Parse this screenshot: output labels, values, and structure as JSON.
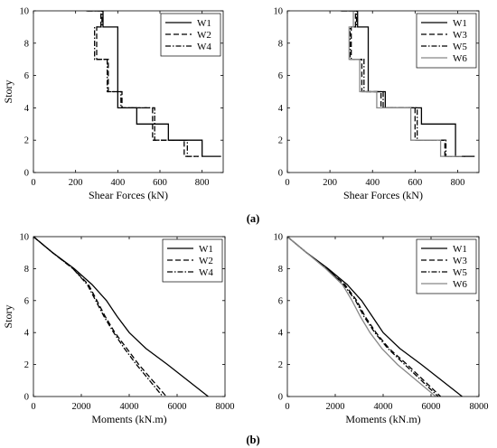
{
  "figure": {
    "caption_a": "(a)",
    "caption_b": "(b)"
  },
  "chart_data": [
    {
      "type": "line",
      "id": "shear_a",
      "xlabel": "Shear Forces (kN)",
      "ylabel": "Story",
      "xlim": [
        0,
        900
      ],
      "ylim": [
        0,
        10
      ],
      "xticks": [
        0,
        200,
        400,
        600,
        800
      ],
      "yticks": [
        0,
        2,
        4,
        6,
        8,
        10
      ],
      "legend": "top-right",
      "grid": false,
      "series": [
        {
          "name": "W1",
          "style": "solid",
          "color": "#000000",
          "x": [
            250,
            330,
            330,
            400,
            400,
            490,
            490,
            640,
            640,
            800,
            800,
            890
          ],
          "y": [
            10,
            10,
            9,
            9,
            4,
            4,
            3,
            3,
            2,
            2,
            1,
            1
          ]
        },
        {
          "name": "W2",
          "style": "dashed",
          "color": "#000000",
          "x": [
            255,
            320,
            320,
            300,
            300,
            355,
            355,
            420,
            420,
            565,
            565,
            715,
            715,
            785
          ],
          "y": [
            10,
            10,
            9,
            9,
            7,
            7,
            5,
            5,
            4,
            4,
            2,
            2,
            1,
            1
          ]
        },
        {
          "name": "W4",
          "style": "dashdot",
          "color": "#000000",
          "x": [
            255,
            325,
            325,
            290,
            290,
            350,
            350,
            415,
            415,
            575,
            575,
            730,
            730,
            780
          ],
          "y": [
            10,
            10,
            9,
            9,
            7,
            7,
            5,
            5,
            4,
            4,
            2,
            2,
            1,
            1
          ]
        }
      ]
    },
    {
      "type": "line",
      "id": "shear_b",
      "xlabel": "Shear Forces (kN)",
      "ylabel": "",
      "xlim": [
        0,
        900
      ],
      "ylim": [
        0,
        10
      ],
      "xticks": [
        0,
        200,
        400,
        600,
        800
      ],
      "yticks": [
        0,
        2,
        4,
        6,
        8,
        10
      ],
      "legend": "top-right",
      "grid": false,
      "series": [
        {
          "name": "W1",
          "style": "solid",
          "color": "#000000",
          "x": [
            250,
            330,
            330,
            380,
            380,
            460,
            460,
            630,
            630,
            790,
            790,
            880
          ],
          "y": [
            10,
            10,
            9,
            9,
            5,
            5,
            4,
            4,
            3,
            3,
            1,
            1
          ]
        },
        {
          "name": "W3",
          "style": "dashed",
          "color": "#000000",
          "x": [
            255,
            320,
            320,
            300,
            300,
            350,
            350,
            440,
            440,
            600,
            600,
            740,
            740,
            830
          ],
          "y": [
            10,
            10,
            9,
            9,
            7,
            7,
            5,
            5,
            4,
            4,
            2,
            2,
            1,
            1
          ]
        },
        {
          "name": "W5",
          "style": "dashdot",
          "color": "#000000",
          "x": [
            255,
            325,
            325,
            295,
            295,
            360,
            360,
            450,
            450,
            610,
            610,
            745,
            745,
            835
          ],
          "y": [
            10,
            10,
            9,
            9,
            7,
            7,
            5,
            5,
            4,
            4,
            2,
            2,
            1,
            1
          ]
        },
        {
          "name": "W6",
          "style": "solid",
          "color": "#888888",
          "x": [
            250,
            310,
            310,
            290,
            290,
            340,
            340,
            420,
            420,
            580,
            580,
            720,
            720,
            820
          ],
          "y": [
            10,
            10,
            9,
            9,
            7,
            7,
            5,
            5,
            4,
            4,
            2,
            2,
            1,
            1
          ]
        }
      ]
    },
    {
      "type": "line",
      "id": "moment_a",
      "xlabel": "Moments (kN.m)",
      "ylabel": "Story",
      "xlim": [
        0,
        8000
      ],
      "ylim": [
        0,
        10
      ],
      "xticks": [
        0,
        2000,
        4000,
        6000,
        8000
      ],
      "yticks": [
        0,
        2,
        4,
        6,
        8,
        10
      ],
      "legend": "top-right",
      "grid": false,
      "series": [
        {
          "name": "W1",
          "style": "solid",
          "color": "#000000",
          "x": [
            0,
            800,
            1700,
            2450,
            3050,
            3500,
            4000,
            4700,
            5600,
            7300
          ],
          "y": [
            10,
            9,
            8,
            7,
            6,
            5,
            4,
            3,
            2,
            0
          ]
        },
        {
          "name": "W2",
          "style": "dashed",
          "color": "#000000",
          "x": [
            0,
            800,
            1650,
            2300,
            2650,
            3000,
            3400,
            3900,
            4400,
            5550
          ],
          "y": [
            10,
            9,
            8,
            7,
            6,
            5,
            4,
            3,
            2,
            0
          ]
        },
        {
          "name": "W4",
          "style": "dashdot",
          "color": "#000000",
          "x": [
            0,
            800,
            1650,
            2250,
            2600,
            2950,
            3350,
            3800,
            4300,
            5400
          ],
          "y": [
            10,
            9,
            8,
            7,
            6,
            5,
            4,
            3,
            2,
            0
          ]
        }
      ]
    },
    {
      "type": "line",
      "id": "moment_b",
      "xlabel": "Moments (kN.m)",
      "ylabel": "",
      "xlim": [
        0,
        8000
      ],
      "ylim": [
        0,
        10
      ],
      "xticks": [
        0,
        2000,
        4000,
        6000,
        8000
      ],
      "yticks": [
        0,
        2,
        4,
        6,
        8,
        10
      ],
      "legend": "top-right",
      "grid": false,
      "series": [
        {
          "name": "W1",
          "style": "solid",
          "color": "#000000",
          "x": [
            0,
            800,
            1700,
            2500,
            3100,
            3550,
            4000,
            4700,
            5600,
            7300
          ],
          "y": [
            10,
            9,
            8,
            7,
            6,
            5,
            4,
            3,
            2,
            0
          ]
        },
        {
          "name": "W3",
          "style": "dashed",
          "color": "#000000",
          "x": [
            0,
            800,
            1650,
            2400,
            2900,
            3250,
            3700,
            4250,
            5000,
            6400
          ],
          "y": [
            10,
            9,
            8,
            7,
            6,
            5,
            4,
            3,
            2,
            0
          ]
        },
        {
          "name": "W5",
          "style": "dashdot",
          "color": "#000000",
          "x": [
            0,
            800,
            1650,
            2350,
            2850,
            3200,
            3650,
            4200,
            4900,
            6300
          ],
          "y": [
            10,
            9,
            8,
            7,
            6,
            5,
            4,
            3,
            2,
            0
          ]
        },
        {
          "name": "W6",
          "style": "solid",
          "color": "#888888",
          "x": [
            0,
            800,
            1600,
            2300,
            2700,
            3050,
            3450,
            3950,
            4600,
            6200
          ],
          "y": [
            10,
            9,
            8,
            7,
            6,
            5,
            4,
            3,
            2,
            0
          ]
        }
      ]
    }
  ]
}
